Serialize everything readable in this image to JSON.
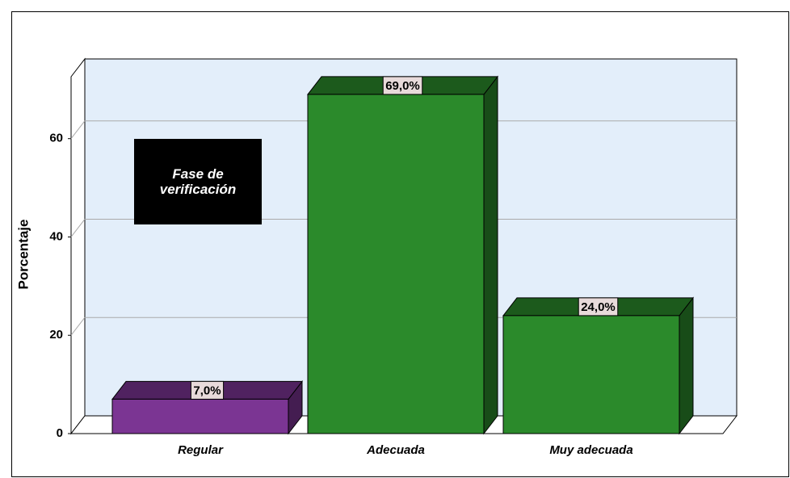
{
  "chart_data": {
    "type": "bar",
    "categories": [
      "Regular",
      "Adecuada",
      "Muy adecuada"
    ],
    "values": [
      7,
      69,
      24
    ],
    "value_labels": [
      "7,0%",
      "69,0%",
      "24,0%"
    ],
    "colors": [
      "#7b3593",
      "#2b8a2b",
      "#2b8a2b"
    ],
    "ylabel": "Porcentaje",
    "annotation": "Fase de verificación",
    "ylim": [
      0,
      72.6
    ],
    "yticks": [
      0,
      20,
      40,
      60
    ],
    "grid": true
  }
}
